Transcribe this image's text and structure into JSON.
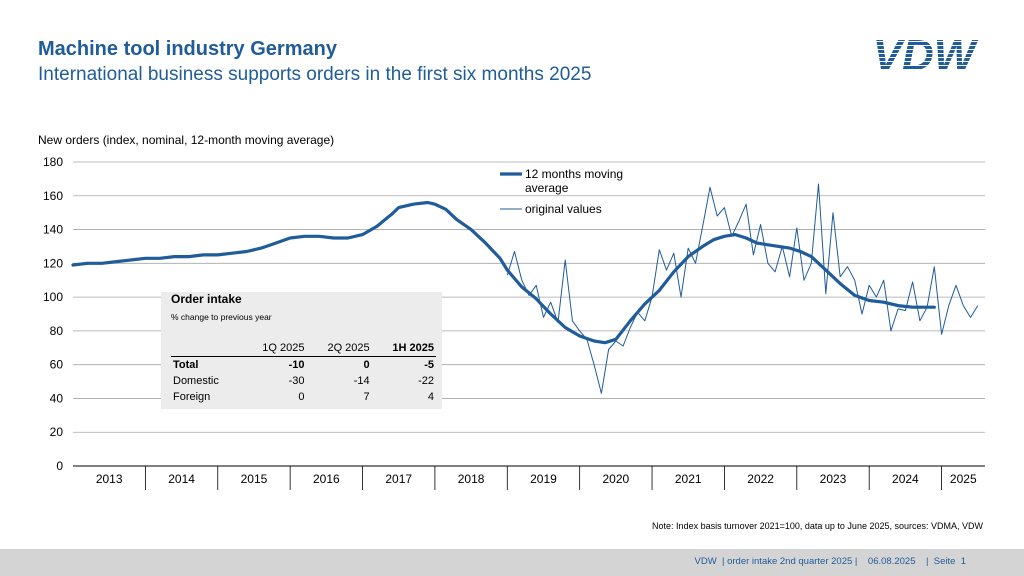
{
  "header": {
    "title": "Machine tool industry Germany",
    "subtitle": "International business supports orders in the first six months 2025",
    "logo_text": "VDW"
  },
  "order_intake": {
    "title": "Order intake",
    "subtitle": "% change to previous year",
    "columns": [
      "",
      "1Q 2025",
      "2Q 2025",
      "1H 2025"
    ],
    "rows": [
      {
        "label": "Total",
        "values": [
          "-10",
          "0",
          "-5"
        ],
        "bold": true
      },
      {
        "label": "Domestic",
        "values": [
          "-30",
          "-14",
          "-22"
        ],
        "bold": false
      },
      {
        "label": "Foreign",
        "values": [
          "0",
          "7",
          "4"
        ],
        "bold": false
      }
    ]
  },
  "note": "Note: Index basis turnover 2021=100, data up to June 2025, sources: VDMA, VDW",
  "footer": "VDW  | order intake 2nd quarter 2025 |    06.08.2025    |  Seite  1",
  "colors": {
    "brand": "#1f5c99",
    "series": "#1f5c99",
    "grid": "#a6a6a6",
    "table_bg": "#ececec",
    "footer_bg": "#d4d4d4"
  },
  "chart_data": {
    "type": "line",
    "ylabel": "New orders (index, nominal, 12-month moving average)",
    "ylim": [
      0,
      180
    ],
    "yticks": [
      0,
      20,
      40,
      60,
      80,
      100,
      120,
      140,
      160,
      180
    ],
    "xlim": [
      2013,
      2025.6
    ],
    "year_labels": [
      "2013",
      "2014",
      "2015",
      "2016",
      "2017",
      "2018",
      "2019",
      "2020",
      "2021",
      "2022",
      "2023",
      "2024",
      "2025"
    ],
    "grid": "horizontal",
    "legend_position": "top-center",
    "series": [
      {
        "name": "12 months moving average",
        "style": "thick",
        "points": [
          [
            2013.0,
            119
          ],
          [
            2013.2,
            120
          ],
          [
            2013.4,
            120
          ],
          [
            2013.6,
            121
          ],
          [
            2013.8,
            122
          ],
          [
            2014.0,
            123
          ],
          [
            2014.2,
            123
          ],
          [
            2014.4,
            124
          ],
          [
            2014.6,
            124
          ],
          [
            2014.8,
            125
          ],
          [
            2015.0,
            125
          ],
          [
            2015.2,
            126
          ],
          [
            2015.4,
            127
          ],
          [
            2015.6,
            129
          ],
          [
            2015.8,
            132
          ],
          [
            2016.0,
            135
          ],
          [
            2016.2,
            136
          ],
          [
            2016.4,
            136
          ],
          [
            2016.6,
            135
          ],
          [
            2016.8,
            135
          ],
          [
            2017.0,
            137
          ],
          [
            2017.2,
            142
          ],
          [
            2017.4,
            149
          ],
          [
            2017.5,
            153
          ],
          [
            2017.7,
            155
          ],
          [
            2017.9,
            156
          ],
          [
            2018.0,
            155
          ],
          [
            2018.15,
            152
          ],
          [
            2018.3,
            146
          ],
          [
            2018.5,
            140
          ],
          [
            2018.7,
            132
          ],
          [
            2018.9,
            123
          ],
          [
            2019.0,
            116
          ],
          [
            2019.2,
            106
          ],
          [
            2019.4,
            99
          ],
          [
            2019.6,
            90
          ],
          [
            2019.8,
            82
          ],
          [
            2020.0,
            77
          ],
          [
            2020.2,
            74
          ],
          [
            2020.35,
            73
          ],
          [
            2020.5,
            75
          ],
          [
            2020.7,
            86
          ],
          [
            2020.9,
            96
          ],
          [
            2021.1,
            104
          ],
          [
            2021.3,
            115
          ],
          [
            2021.5,
            124
          ],
          [
            2021.7,
            130
          ],
          [
            2021.85,
            134
          ],
          [
            2022.0,
            136
          ],
          [
            2022.15,
            137
          ],
          [
            2022.3,
            135
          ],
          [
            2022.45,
            132
          ],
          [
            2022.6,
            131
          ],
          [
            2022.75,
            130
          ],
          [
            2022.9,
            129
          ],
          [
            2023.05,
            127
          ],
          [
            2023.2,
            124
          ],
          [
            2023.4,
            116
          ],
          [
            2023.6,
            108
          ],
          [
            2023.8,
            101
          ],
          [
            2024.0,
            98
          ],
          [
            2024.2,
            97
          ],
          [
            2024.4,
            95
          ],
          [
            2024.6,
            94
          ],
          [
            2024.9,
            94
          ]
        ]
      },
      {
        "name": "original values",
        "style": "thin",
        "points": [
          [
            2019.0,
            113
          ],
          [
            2019.1,
            127
          ],
          [
            2019.2,
            110
          ],
          [
            2019.3,
            101
          ],
          [
            2019.4,
            107
          ],
          [
            2019.5,
            88
          ],
          [
            2019.6,
            97
          ],
          [
            2019.7,
            85
          ],
          [
            2019.8,
            122
          ],
          [
            2019.9,
            86
          ],
          [
            2020.0,
            80
          ],
          [
            2020.1,
            75
          ],
          [
            2020.2,
            60
          ],
          [
            2020.3,
            43
          ],
          [
            2020.4,
            69
          ],
          [
            2020.5,
            74
          ],
          [
            2020.6,
            71
          ],
          [
            2020.7,
            82
          ],
          [
            2020.8,
            91
          ],
          [
            2020.9,
            86
          ],
          [
            2021.0,
            100
          ],
          [
            2021.1,
            128
          ],
          [
            2021.2,
            116
          ],
          [
            2021.3,
            126
          ],
          [
            2021.4,
            100
          ],
          [
            2021.5,
            129
          ],
          [
            2021.6,
            120
          ],
          [
            2021.7,
            142
          ],
          [
            2021.8,
            165
          ],
          [
            2021.9,
            148
          ],
          [
            2022.0,
            153
          ],
          [
            2022.1,
            136
          ],
          [
            2022.2,
            145
          ],
          [
            2022.3,
            155
          ],
          [
            2022.4,
            125
          ],
          [
            2022.5,
            143
          ],
          [
            2022.6,
            120
          ],
          [
            2022.7,
            115
          ],
          [
            2022.8,
            130
          ],
          [
            2022.9,
            112
          ],
          [
            2023.0,
            141
          ],
          [
            2023.1,
            110
          ],
          [
            2023.2,
            120
          ],
          [
            2023.3,
            167
          ],
          [
            2023.4,
            102
          ],
          [
            2023.5,
            150
          ],
          [
            2023.6,
            112
          ],
          [
            2023.7,
            118
          ],
          [
            2023.8,
            110
          ],
          [
            2023.9,
            90
          ],
          [
            2024.0,
            107
          ],
          [
            2024.1,
            100
          ],
          [
            2024.2,
            110
          ],
          [
            2024.3,
            80
          ],
          [
            2024.4,
            93
          ],
          [
            2024.5,
            92
          ],
          [
            2024.6,
            109
          ],
          [
            2024.7,
            86
          ],
          [
            2024.8,
            94
          ],
          [
            2024.9,
            118
          ],
          [
            2025.0,
            78
          ],
          [
            2025.1,
            95
          ],
          [
            2025.2,
            107
          ],
          [
            2025.3,
            95
          ],
          [
            2025.4,
            88
          ],
          [
            2025.5,
            95
          ]
        ]
      }
    ]
  }
}
